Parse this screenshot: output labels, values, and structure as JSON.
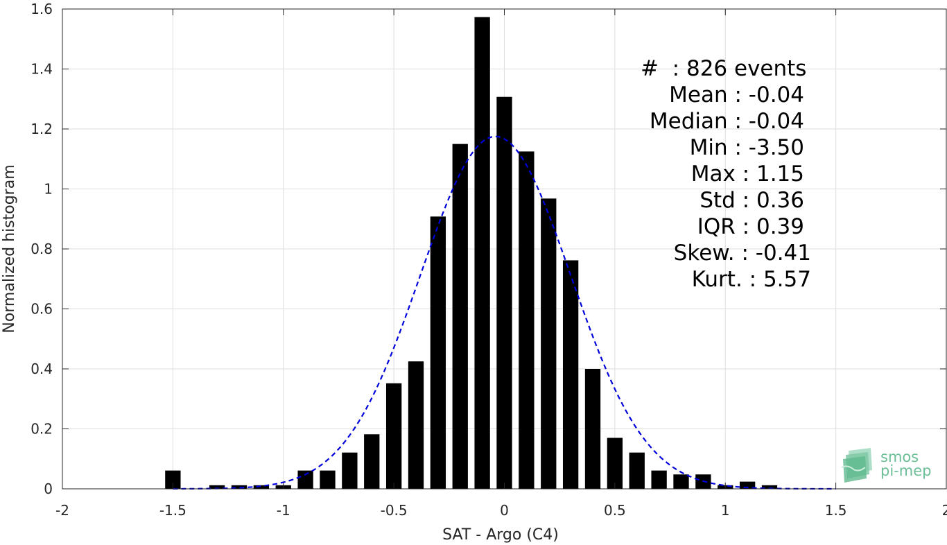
{
  "chart_data": {
    "type": "bar",
    "xlabel": "SAT - Argo (C4)",
    "ylabel": "Normalized histogram",
    "xlim": [
      -2,
      2
    ],
    "ylim": [
      0,
      1.6
    ],
    "xticks": [
      -2,
      -1.5,
      -1,
      -0.5,
      0,
      0.5,
      1,
      1.5,
      2
    ],
    "xtick_labels": [
      "-2",
      "-1.5",
      "-1",
      "-0.5",
      "0",
      "0.5",
      "1",
      "1.5",
      "2"
    ],
    "yticks": [
      0,
      0.2,
      0.4,
      0.6,
      0.8,
      1,
      1.2,
      1.4,
      1.6
    ],
    "ytick_labels": [
      "0",
      "0.2",
      "0.4",
      "0.6",
      "0.8",
      "1",
      "1.2",
      "1.4",
      "1.6"
    ],
    "grid": true,
    "bar_width": 0.07,
    "bar_color": "#000000",
    "x": [
      -1.5,
      -1.3,
      -1.2,
      -1.1,
      -1.0,
      -0.9,
      -0.8,
      -0.7,
      -0.6,
      -0.5,
      -0.4,
      -0.3,
      -0.2,
      -0.1,
      0.0,
      0.1,
      0.2,
      0.3,
      0.4,
      0.5,
      0.6,
      0.7,
      0.8,
      0.9,
      1.0,
      1.1,
      1.2
    ],
    "values": [
      0.061,
      0.012,
      0.012,
      0.012,
      0.012,
      0.061,
      0.061,
      0.121,
      0.182,
      0.352,
      0.425,
      0.908,
      1.15,
      1.573,
      1.307,
      1.125,
      0.968,
      0.762,
      0.4,
      0.17,
      0.121,
      0.061,
      0.048,
      0.048,
      0.012,
      0.024,
      0.012
    ],
    "fit_curve": {
      "type": "normal",
      "mean": -0.04,
      "std": 0.34,
      "x_range": [
        -1.5,
        1.5
      ],
      "color": "#0000dd",
      "style": "dashed"
    }
  },
  "stats": [
    "#  : 826 events",
    "Mean : -0.04",
    "Median : -0.04",
    "Min : -3.50",
    "Max : 1.15",
    "Std : 0.36",
    "IQR : 0.39",
    "Skew. : -0.41",
    "Kurt. : 5.57"
  ],
  "logo": {
    "line1": "smos",
    "line2": "pi-mep",
    "color": "#6bbf97",
    "icon": "stacked-waves-icon"
  }
}
